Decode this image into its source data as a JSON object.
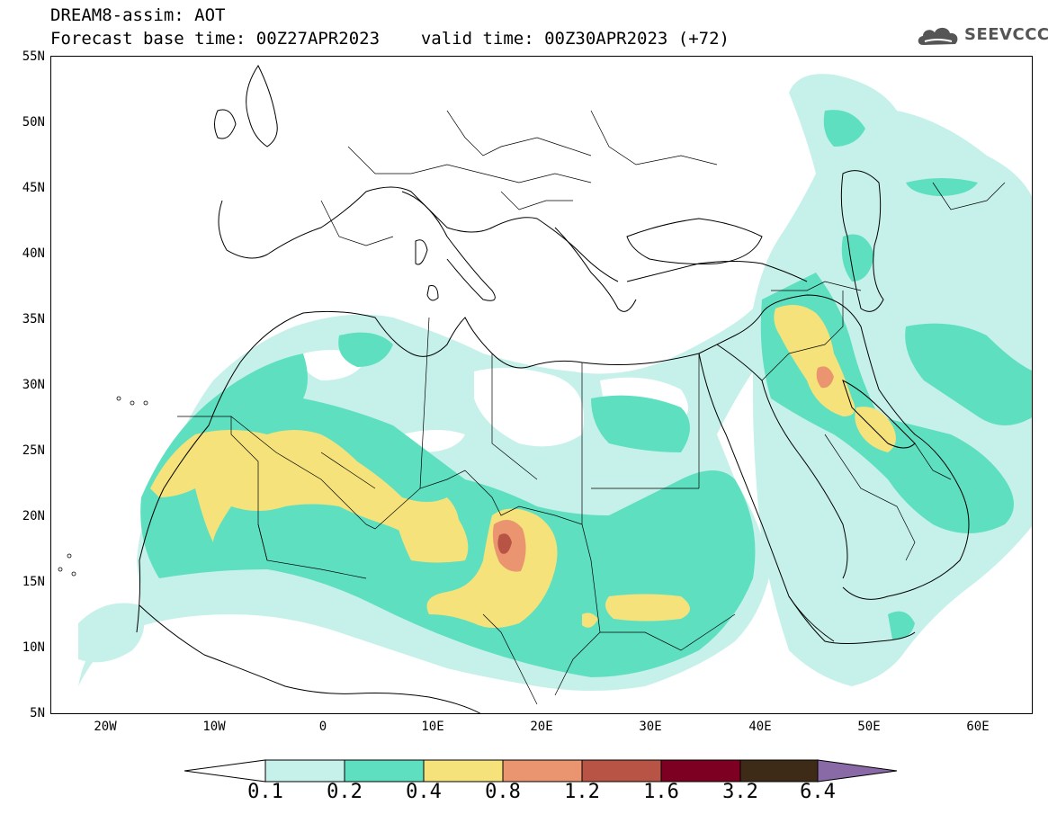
{
  "title": {
    "line1": "DREAM8-assim: AOT",
    "base_label": "Forecast base time: 00Z27APR2023",
    "valid_label": "valid time: 00Z30APR2023 (+72)"
  },
  "logo": {
    "text": "SEEVCCC",
    "icon": "cloud-icon"
  },
  "map": {
    "projection": "lat-lon",
    "lon_range": [
      -25,
      65
    ],
    "lat_range": [
      5,
      55
    ],
    "lat_ticks": [
      "55N",
      "50N",
      "45N",
      "40N",
      "35N",
      "30N",
      "25N",
      "20N",
      "15N",
      "10N",
      "5N"
    ],
    "lon_ticks": [
      "20W",
      "10W",
      "0",
      "10E",
      "20E",
      "30E",
      "40E",
      "50E",
      "60E"
    ]
  },
  "colorbar": {
    "labels": [
      "0.1",
      "0.2",
      "0.4",
      "0.8",
      "1.2",
      "1.6",
      "3.2",
      "6.4"
    ],
    "colors": [
      "#ffffff",
      "#c6f1ea",
      "#5ee0c0",
      "#f5e27a",
      "#ea9570",
      "#b75446",
      "#7d0023",
      "#3e2b17",
      "#8a6aa6"
    ]
  },
  "colors": {
    "c1": "#c6f1ea",
    "c2": "#5ee0c0",
    "c3": "#f5e27a",
    "c4": "#ea9570",
    "c5": "#b75446"
  }
}
